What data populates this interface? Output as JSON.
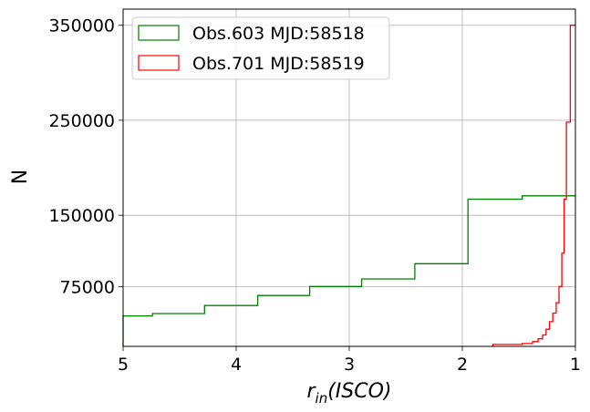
{
  "chart_data": {
    "type": "step",
    "xlabel_base": "r",
    "xlabel_sub": "in",
    "xlabel_rest": "(ISCO)",
    "ylabel": "N",
    "x_reversed": true,
    "xlim": [
      5,
      1
    ],
    "ylim": [
      12000,
      367000
    ],
    "x_ticks": [
      5,
      4,
      3,
      2,
      1
    ],
    "x_tick_labels": [
      "5",
      "4",
      "3",
      "2",
      "1"
    ],
    "y_ticks": [
      75000,
      150000,
      250000,
      350000
    ],
    "y_tick_labels": [
      "75000",
      "150000",
      "250000",
      "350000"
    ],
    "grid": true,
    "legend_position": "top-left",
    "series": [
      {
        "name": "Obs.603 MJD:58518",
        "color": "#008000",
        "points": [
          [
            5.0,
            44000
          ],
          [
            4.74,
            46500
          ],
          [
            4.28,
            55000
          ],
          [
            3.81,
            65500
          ],
          [
            3.35,
            75000
          ],
          [
            2.89,
            83000
          ],
          [
            2.42,
            99000
          ],
          [
            1.95,
            167000
          ],
          [
            1.47,
            170500
          ],
          [
            1.0,
            170500
          ]
        ]
      },
      {
        "name": "Obs.701 MJD:58519",
        "color": "#ff0000",
        "points": [
          [
            1.73,
            14000
          ],
          [
            1.47,
            15000
          ],
          [
            1.38,
            17000
          ],
          [
            1.33,
            20000
          ],
          [
            1.29,
            24000
          ],
          [
            1.26,
            30000
          ],
          [
            1.23,
            38000
          ],
          [
            1.2,
            47000
          ],
          [
            1.17,
            58000
          ],
          [
            1.145,
            75000
          ],
          [
            1.12,
            110000
          ],
          [
            1.1,
            167000
          ],
          [
            1.08,
            248000
          ],
          [
            1.045,
            350000
          ],
          [
            1.0,
            350000
          ]
        ]
      }
    ]
  }
}
